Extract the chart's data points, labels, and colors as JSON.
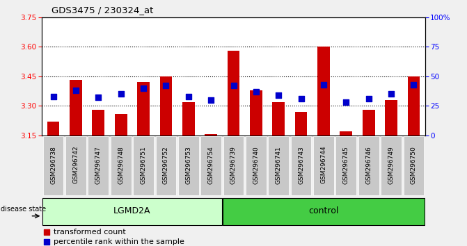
{
  "title": "GDS3475 / 230324_at",
  "samples": [
    "GSM296738",
    "GSM296742",
    "GSM296747",
    "GSM296748",
    "GSM296751",
    "GSM296752",
    "GSM296753",
    "GSM296754",
    "GSM296739",
    "GSM296740",
    "GSM296741",
    "GSM296743",
    "GSM296744",
    "GSM296745",
    "GSM296746",
    "GSM296749",
    "GSM296750"
  ],
  "transformed_count": [
    3.22,
    3.43,
    3.28,
    3.26,
    3.42,
    3.45,
    3.32,
    3.155,
    3.58,
    3.38,
    3.32,
    3.27,
    3.6,
    3.17,
    3.28,
    3.33,
    3.45
  ],
  "percentile_rank": [
    33,
    38,
    32,
    35,
    40,
    42,
    33,
    30,
    42,
    37,
    34,
    31,
    43,
    28,
    31,
    35,
    43
  ],
  "groups": [
    "LGMD2A",
    "LGMD2A",
    "LGMD2A",
    "LGMD2A",
    "LGMD2A",
    "LGMD2A",
    "LGMD2A",
    "LGMD2A",
    "control",
    "control",
    "control",
    "control",
    "control",
    "control",
    "control",
    "control",
    "control"
  ],
  "ylim_left": [
    3.15,
    3.75
  ],
  "ylim_right": [
    0,
    100
  ],
  "yticks_left": [
    3.15,
    3.3,
    3.45,
    3.6,
    3.75
  ],
  "yticks_right": [
    0,
    25,
    50,
    75,
    100
  ],
  "ytick_labels_right": [
    "0",
    "25",
    "50",
    "75",
    "100%"
  ],
  "grid_lines": [
    3.3,
    3.45,
    3.6
  ],
  "bar_color": "#cc0000",
  "dot_color": "#0000cc",
  "lgmd2a_color": "#ccffcc",
  "control_color": "#44cc44",
  "sample_box_color": "#c8c8c8",
  "baseline": 3.15,
  "bar_width": 0.55,
  "dot_size": 35,
  "legend_red": "transformed count",
  "legend_blue": "percentile rank within the sample",
  "disease_state_label": "disease state",
  "fig_bg_color": "#f0f0f0",
  "plot_bg_color": "#ffffff"
}
